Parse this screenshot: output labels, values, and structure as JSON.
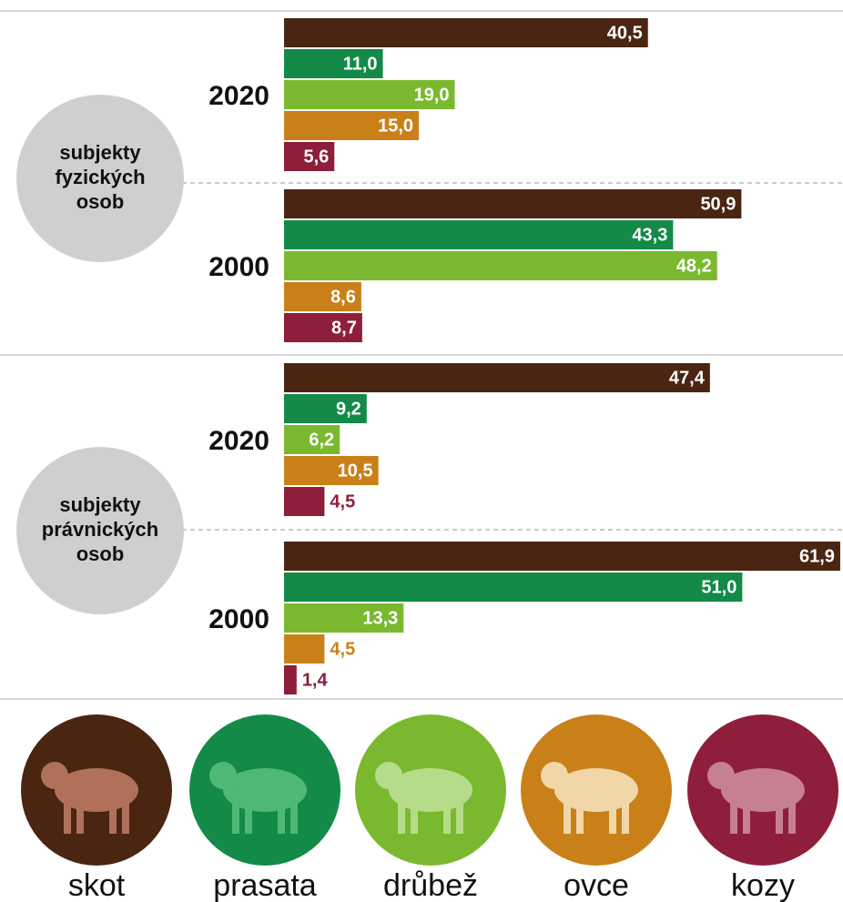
{
  "chart_data": {
    "type": "bar",
    "orientation": "horizontal",
    "groups": [
      {
        "label": "subjekty fyzických osob",
        "categories": [
          "2020",
          "2000"
        ]
      },
      {
        "label": "subjekty právnických osob",
        "categories": [
          "2020",
          "2000"
        ]
      }
    ],
    "series": [
      {
        "name": "skot",
        "color": "#4a2511",
        "values": [
          40.5,
          50.9,
          47.4,
          61.9
        ],
        "value_labels": [
          "40,5",
          "50,9",
          "47,4",
          "61,9"
        ]
      },
      {
        "name": "prasata",
        "color": "#138a48",
        "values": [
          11.0,
          43.3,
          9.2,
          51.0
        ],
        "value_labels": [
          "11,0",
          "43,3",
          "9,2",
          "51,0"
        ]
      },
      {
        "name": "drůbež",
        "color": "#7ab92f",
        "values": [
          19.0,
          48.2,
          6.2,
          13.3
        ],
        "value_labels": [
          "19,0",
          "48,2",
          "6,2",
          "13,3"
        ]
      },
      {
        "name": "ovce",
        "color": "#c98019",
        "values": [
          15.0,
          8.6,
          10.5,
          4.5
        ],
        "value_labels": [
          "15,0",
          "8,6",
          "10,5",
          "4,5"
        ]
      },
      {
        "name": "kozy",
        "color": "#8e1e3a",
        "values": [
          5.6,
          8.7,
          4.5,
          1.4
        ],
        "value_labels": [
          "5,6",
          "8,7",
          "4,5",
          "1,4"
        ]
      }
    ]
  }
}
